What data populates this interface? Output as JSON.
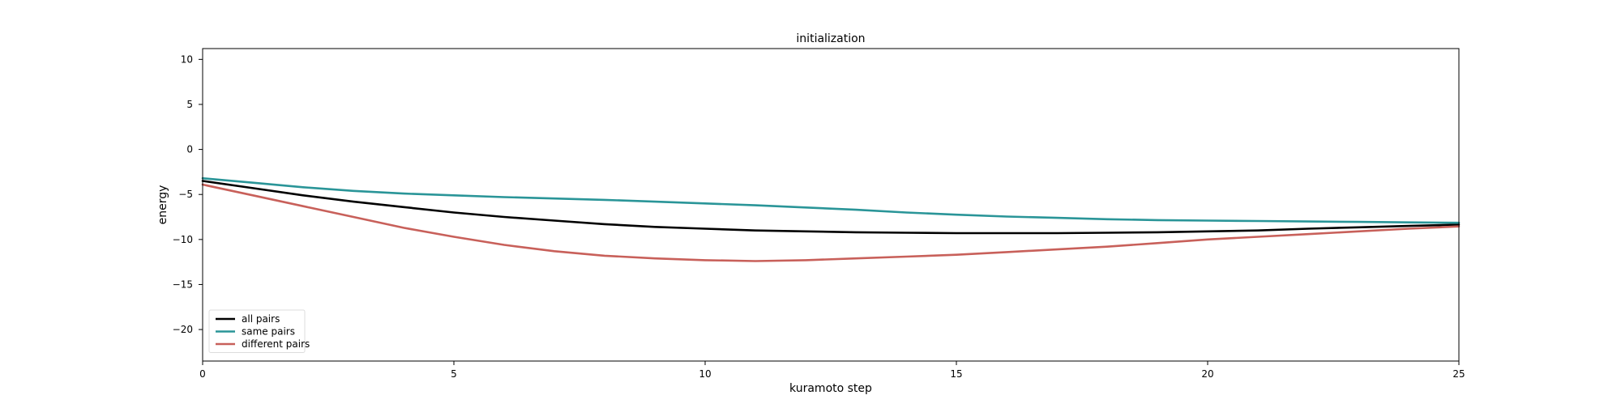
{
  "chart_data": {
    "type": "line",
    "title": "initialization",
    "xlabel": "kuramoto step",
    "ylabel": "energy",
    "xlim": [
      0,
      25
    ],
    "ylim": [
      -23.5,
      11.2
    ],
    "xticks": [
      0,
      5,
      10,
      15,
      20,
      25
    ],
    "yticks": [
      10,
      5,
      0,
      -5,
      -10,
      -15,
      -20
    ],
    "grid": false,
    "legend_position": "lower-left",
    "series": [
      {
        "name": "all pairs",
        "color": "#000000",
        "x": [
          0,
          1,
          2,
          3,
          4,
          5,
          6,
          7,
          8,
          9,
          10,
          11,
          12,
          13,
          14,
          15,
          16,
          17,
          18,
          19,
          20,
          21,
          22,
          23,
          24,
          25
        ],
        "y": [
          -3.5,
          -4.3,
          -5.1,
          -5.8,
          -6.4,
          -7.0,
          -7.5,
          -7.9,
          -8.3,
          -8.6,
          -8.8,
          -9.0,
          -9.1,
          -9.2,
          -9.25,
          -9.3,
          -9.3,
          -9.3,
          -9.25,
          -9.2,
          -9.1,
          -9.0,
          -8.8,
          -8.65,
          -8.5,
          -8.35
        ]
      },
      {
        "name": "same pairs",
        "color": "#2a9598",
        "x": [
          0,
          1,
          2,
          3,
          4,
          5,
          6,
          7,
          8,
          9,
          10,
          11,
          12,
          13,
          14,
          15,
          16,
          17,
          18,
          19,
          20,
          21,
          22,
          23,
          24,
          25
        ],
        "y": [
          -3.2,
          -3.7,
          -4.2,
          -4.6,
          -4.9,
          -5.1,
          -5.3,
          -5.45,
          -5.6,
          -5.8,
          -6.0,
          -6.2,
          -6.45,
          -6.7,
          -7.0,
          -7.25,
          -7.45,
          -7.6,
          -7.75,
          -7.85,
          -7.9,
          -7.95,
          -8.0,
          -8.05,
          -8.1,
          -8.15
        ]
      },
      {
        "name": "different pairs",
        "color": "#c8605a",
        "x": [
          0,
          1,
          2,
          3,
          4,
          5,
          6,
          7,
          8,
          9,
          10,
          11,
          12,
          13,
          14,
          15,
          16,
          17,
          18,
          19,
          20,
          21,
          22,
          23,
          24,
          25
        ],
        "y": [
          -3.9,
          -5.1,
          -6.3,
          -7.5,
          -8.7,
          -9.7,
          -10.6,
          -11.3,
          -11.8,
          -12.1,
          -12.3,
          -12.4,
          -12.3,
          -12.1,
          -11.9,
          -11.7,
          -11.4,
          -11.1,
          -10.8,
          -10.4,
          -10.0,
          -9.7,
          -9.4,
          -9.1,
          -8.8,
          -8.55
        ]
      }
    ]
  }
}
